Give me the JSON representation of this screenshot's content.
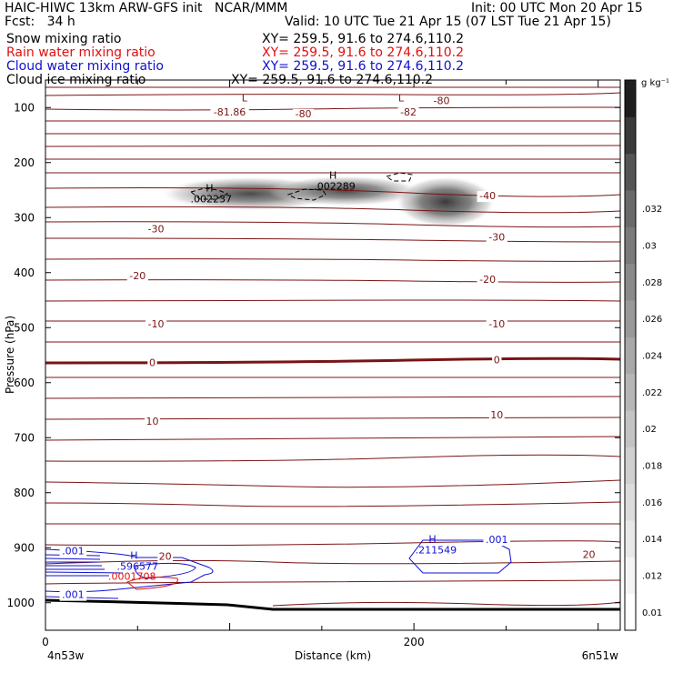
{
  "header": {
    "title_left": "HAIC-HIWC 13km ARW-GFS init   NCAR/MMM",
    "init": "Init: 00 UTC Mon 20 Apr 15",
    "fcst": "Fcst:   34 h",
    "valid": "Valid: 10 UTC Tue 21 Apr 15 (07 LST Tue 21 Apr 15)",
    "fields": [
      {
        "label": "Snow mixing ratio",
        "xy": "XY= 259.5, 91.6 to 274.6,110.2",
        "color": "#000000"
      },
      {
        "label": "Rain water mixing ratio",
        "xy": "XY= 259.5, 91.6 to 274.6,110.2",
        "color": "#e01010"
      },
      {
        "label": "Cloud water mixing ratio",
        "xy": "XY= 259.5, 91.6 to 274.6,110.2",
        "color": "#1010d0"
      },
      {
        "label": "Cloud ice mixing ratio",
        "xy": "XY= 259.5, 91.6 to 274.6,110.2",
        "color": "#000000"
      }
    ]
  },
  "chart_data": {
    "type": "cross-section",
    "xlabel": "Distance (km)",
    "ylabel": "Pressure (hPa)",
    "x_range": [
      0,
      312
    ],
    "x_ticks": [
      {
        "value": 0,
        "label": "0"
      },
      {
        "value": 200,
        "label": "200"
      }
    ],
    "x_end_labels": {
      "left": "4n53w",
      "right": "6n51w"
    },
    "y_range": [
      1050,
      50
    ],
    "y_ticks": [
      100,
      200,
      300,
      400,
      500,
      600,
      700,
      800,
      900,
      1000
    ],
    "colorbar": {
      "unit": "g kg⁻¹",
      "levels": [
        "0.01",
        ".012",
        ".014",
        ".016",
        ".018",
        ".02",
        ".022",
        ".024",
        ".026",
        ".028",
        ".03",
        ".032"
      ],
      "colors": [
        "#ffffff",
        "#f4f4f4",
        "#e8e8e8",
        "#dcdcdc",
        "#d0d0d0",
        "#c3c3c3",
        "#b6b6b6",
        "#a8a8a8",
        "#999999",
        "#8a8a8a",
        "#7a7a7a",
        "#6a6a6a",
        "#555555",
        "#3a3a3a",
        "#1e1e1e"
      ]
    },
    "temperature_contours": {
      "color": "#7a1414",
      "labels": [
        {
          "text": "-81.86",
          "x": 100,
          "p": 108
        },
        {
          "text": "-80",
          "x": 140,
          "p": 111
        },
        {
          "text": "-82",
          "x": 197,
          "p": 108
        },
        {
          "text": "-80",
          "x": 215,
          "p": 87
        },
        {
          "text": "-40",
          "x": 240,
          "p": 260
        },
        {
          "text": "-30",
          "x": 60,
          "p": 320
        },
        {
          "text": "-30",
          "x": 245,
          "p": 335
        },
        {
          "text": "-20",
          "x": 50,
          "p": 405
        },
        {
          "text": "-20",
          "x": 240,
          "p": 412
        },
        {
          "text": "-10",
          "x": 60,
          "p": 493
        },
        {
          "text": "-10",
          "x": 245,
          "p": 493
        },
        {
          "text": "0",
          "x": 58,
          "p": 563
        },
        {
          "text": "0",
          "x": 245,
          "p": 558
        },
        {
          "text": "10",
          "x": 58,
          "p": 670
        },
        {
          "text": "10",
          "x": 245,
          "p": 658
        },
        {
          "text": "20",
          "x": 65,
          "p": 915
        },
        {
          "text": "20",
          "x": 295,
          "p": 912
        }
      ],
      "extremes": [
        {
          "text": "L",
          "x": 108,
          "p": 82
        },
        {
          "text": "L",
          "x": 193,
          "p": 82
        }
      ]
    },
    "snow_maxima": [
      {
        "text": "H",
        "value": ".002237",
        "x": 90,
        "p": 262
      },
      {
        "text": "H",
        "value": ".002289",
        "x": 157,
        "p": 239
      }
    ],
    "cloud_water": {
      "color": "#1010d0",
      "labels": [
        {
          "text": ".001",
          "x": 15,
          "p": 905
        },
        {
          "text": ".001",
          "x": 15,
          "p": 985
        },
        {
          "text": ".001",
          "x": 245,
          "p": 885
        }
      ],
      "maxima": [
        {
          "text": "H",
          "value": ".211549",
          "x": 212,
          "p": 900
        },
        {
          "text": "H",
          "value": ".596577",
          "x": 50,
          "p": 930
        }
      ]
    },
    "rain_water": {
      "color": "#e01010",
      "labels": [
        {
          "text": ".0001708",
          "x": 47,
          "p": 952
        }
      ]
    }
  }
}
